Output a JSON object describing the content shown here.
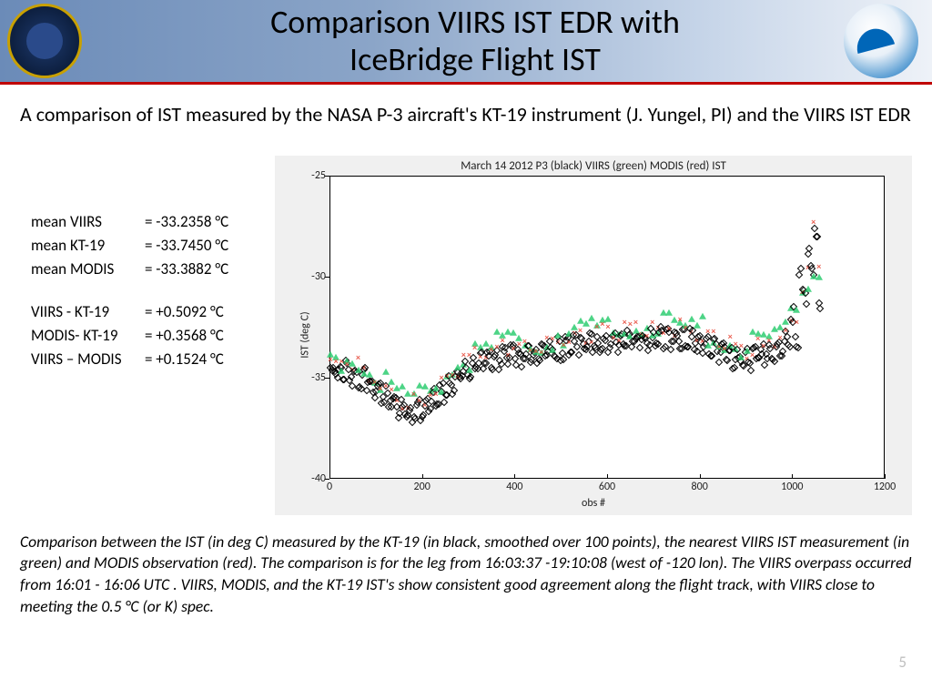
{
  "title_line1": "Comparison  VIIRS IST EDR with",
  "title_line2": "IceBridge Flight IST",
  "intro": "A comparison of IST measured by the NASA P-3 aircraft's KT-19 instrument (J. Yungel, PI) and the VIIRS IST EDR",
  "stats": [
    {
      "lbl": "mean VIIRS",
      "val": "= -33.2358 °C"
    },
    {
      "lbl": "mean KT-19",
      "val": "= -33.7450 °C"
    },
    {
      "lbl": "mean MODIS",
      "val": "= -33.3882 °C"
    }
  ],
  "diffs": [
    {
      "lbl": "VIIRS - KT-19",
      "val": "= +0.5092 °C"
    },
    {
      "lbl": "MODIS- KT-19",
      "val": "= +0.3568 °C"
    },
    {
      "lbl": "VIIRS – MODIS",
      "val": "= +0.1524 °C"
    }
  ],
  "chart": {
    "title": "March 14 2012 P3 (black)  VIIRS (green)  MODIS (red)  IST",
    "ylabel": "IST (deg C)",
    "xlabel": "obs #",
    "xlim": [
      0,
      1200
    ],
    "xticks": [
      0,
      200,
      400,
      600,
      800,
      1000,
      1200
    ],
    "ylim": [
      -40,
      -25
    ],
    "yticks": [
      -40,
      -35,
      -30,
      -25
    ],
    "colors": {
      "p3": "#000000",
      "viirs": "#2ecc71",
      "modis": "#e74c3c",
      "bg": "#f0f0f0",
      "plot": "#ffffff"
    }
  },
  "caption": "Comparison between the IST (in deg C) measured by the KT-19  (in black, smoothed over 100 points), the nearest VIIRS IST measurement (in green) and MODIS observation (red).  The comparison is for the leg from 16:03:37 -19:10:08 (west of -120 lon).  The VIIRS overpass occurred from 16:01 - 16:06 UTC . VIIRS, MODIS, and the KT-19 IST's show consistent good agreement along the flight track, with VIIRS close to meeting the 0.5 °C (or K) spec.",
  "pagenum": "5"
}
